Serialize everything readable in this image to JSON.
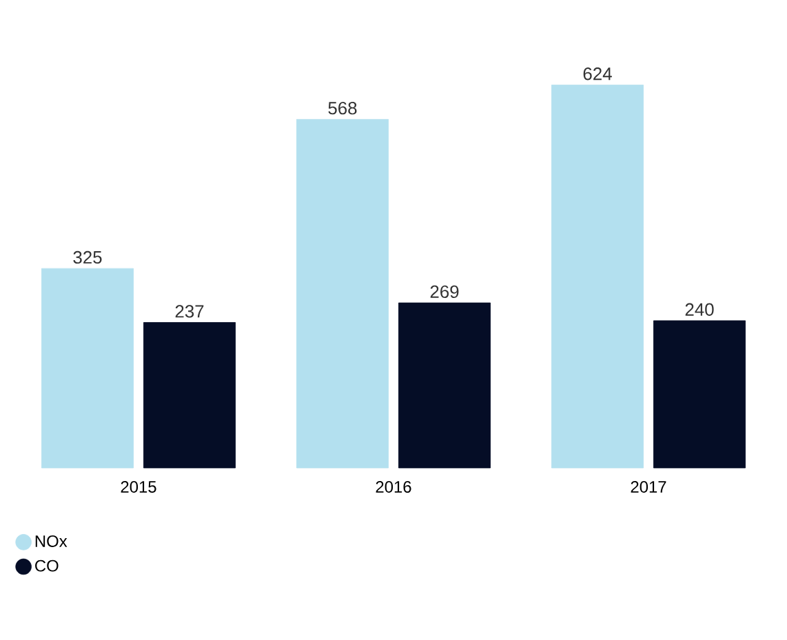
{
  "chart_data": {
    "type": "bar",
    "categories": [
      "2015",
      "2016",
      "2017"
    ],
    "series": [
      {
        "name": "NOx",
        "color": "#b3e0ef",
        "values": [
          325,
          568,
          624
        ]
      },
      {
        "name": "CO",
        "color": "#050d26",
        "values": [
          237,
          269,
          240
        ]
      }
    ],
    "data_labels": true,
    "legend": "bottom left"
  }
}
